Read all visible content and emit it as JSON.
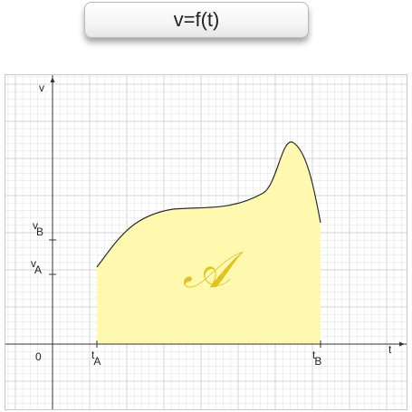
{
  "title": "v=f(t)",
  "axes": {
    "x_name": "t",
    "y_name": "v",
    "origin_label": "0"
  },
  "markers": {
    "t_a_main": "t",
    "t_a_sub": "A",
    "t_b_main": "t",
    "t_b_sub": "B",
    "v_a_main": "v",
    "v_a_sub": "A",
    "v_b_main": "v",
    "v_b_sub": "B"
  },
  "area_symbol": "𝒜",
  "colors": {
    "fill": "#fff9b0",
    "curve": "#2b2b2b",
    "symbol": "#e2c31c",
    "grid_minor": "#e6e6e6",
    "grid_major": "#c9c9c9",
    "axis": "#333333"
  },
  "chart_data": {
    "type": "area",
    "x_range": [
      "t_A",
      "t_B"
    ],
    "function": "v=f(t)",
    "shaded_region": "area under v=f(t) from t_A to t_B"
  }
}
